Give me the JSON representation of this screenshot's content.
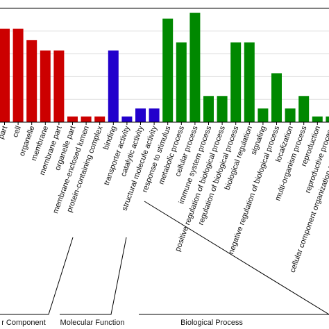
{
  "chart_data": {
    "type": "bar",
    "title": "",
    "xlabel": "",
    "ylabel": "",
    "ylim": [
      0,
      10
    ],
    "grid": true,
    "legend": "none",
    "categories": [
      "part",
      "cell",
      "organelle",
      "membrane",
      "membrane part",
      "organelle part",
      "membrane-enclosed lumen",
      "protein-containing complex",
      "binding",
      "transporter activity",
      "catalytic activity",
      "structural molecule activity",
      "response to stimulus",
      "metabolic process",
      "cellular process",
      "immune system process",
      "positive regulation of biological process",
      "regulation of biological process",
      "biological regulation",
      "signaling",
      "negative regulation of biological process",
      "localization",
      "multi-organism process",
      "reproduction",
      "reproductive process",
      "cellular component organization or biogenesis",
      ""
    ],
    "values": [
      8.2,
      8.2,
      7.2,
      6.3,
      6.3,
      0.5,
      0.5,
      0.5,
      6.3,
      0.5,
      1.2,
      1.2,
      9.1,
      7.0,
      9.6,
      2.3,
      2.3,
      7.0,
      7.0,
      1.2,
      4.3,
      1.2,
      2.3,
      0.5,
      0.5,
      1.2,
      1.2
    ],
    "series_groups": [
      {
        "name": "Cellular Component",
        "display": "r Component",
        "color": "#cc0000",
        "start": 0,
        "end": 7
      },
      {
        "name": "Molecular Function",
        "display": "Molecular Function",
        "color": "#2200cc",
        "start": 8,
        "end": 11
      },
      {
        "name": "Biological Process",
        "display": "Biological Process",
        "color": "#008800",
        "start": 12,
        "end": 26
      }
    ]
  }
}
